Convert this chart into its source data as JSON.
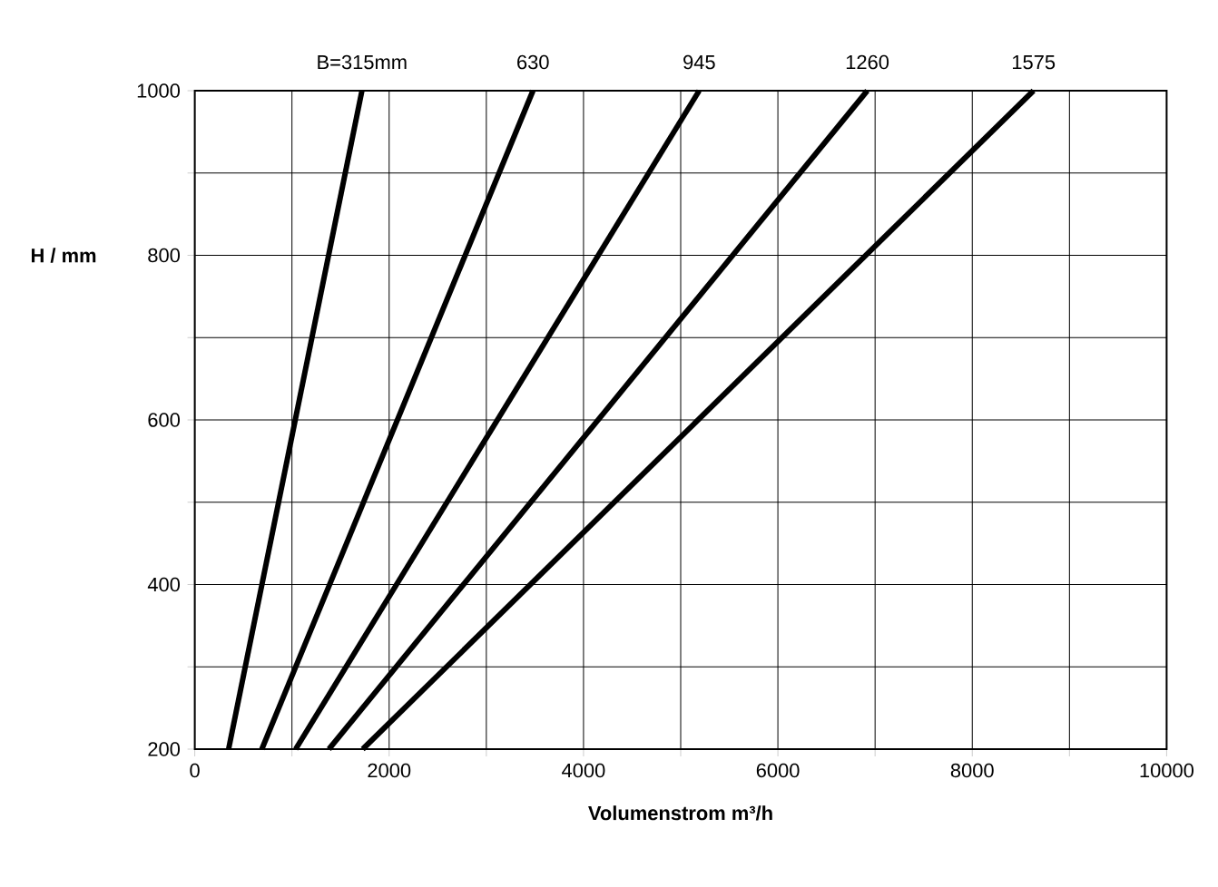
{
  "chart_data": {
    "type": "line",
    "xlabel": "Volumenstrom m³/h",
    "ylabel": "H / mm",
    "xlim": [
      0,
      10000
    ],
    "ylim": [
      200,
      1000
    ],
    "xticks": [
      0,
      {
        "value": 1000,
        "label": null
      },
      2000,
      {
        "value": 3000,
        "label": null
      },
      4000,
      {
        "value": 5000,
        "label": null
      },
      6000,
      {
        "value": 7000,
        "label": null
      },
      8000,
      {
        "value": 9000,
        "label": null
      },
      10000
    ],
    "yticks": [
      200,
      {
        "value": 300,
        "label": null
      },
      400,
      {
        "value": 500,
        "label": null
      },
      600,
      {
        "value": 700,
        "label": null
      },
      800,
      {
        "value": 900,
        "label": null
      },
      1000
    ],
    "grid": true,
    "legend": false,
    "marker": "none",
    "line_style": "solid",
    "series": [
      {
        "name": "B=315mm",
        "color": "#000000",
        "x": [
          348,
          1720
        ],
        "values": [
          200,
          1000
        ]
      },
      {
        "name": "630",
        "color": "#000000",
        "x": [
          690,
          3480
        ],
        "values": [
          200,
          1000
        ]
      },
      {
        "name": "945",
        "color": "#000000",
        "x": [
          1038,
          5190
        ],
        "values": [
          200,
          1000
        ]
      },
      {
        "name": "1260",
        "color": "#000000",
        "x": [
          1380,
          6920
        ],
        "values": [
          200,
          1000
        ]
      },
      {
        "name": "1575",
        "color": "#000000",
        "x": [
          1728,
          8630
        ],
        "values": [
          200,
          1000
        ]
      }
    ]
  }
}
